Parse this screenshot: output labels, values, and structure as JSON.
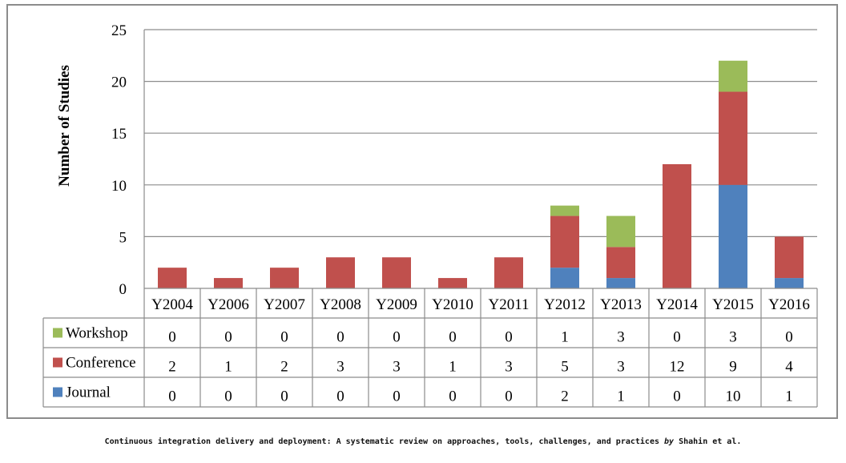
{
  "chart_data": {
    "type": "bar",
    "stacked": true,
    "categories": [
      "Y2004",
      "Y2006",
      "Y2007",
      "Y2008",
      "Y2009",
      "Y2010",
      "Y2011",
      "Y2012",
      "Y2013",
      "Y2014",
      "Y2015",
      "Y2016"
    ],
    "series": [
      {
        "name": "Workshop",
        "color": "#9bbb59",
        "values": [
          0,
          0,
          0,
          0,
          0,
          0,
          0,
          1,
          3,
          0,
          3,
          0
        ]
      },
      {
        "name": "Conference",
        "color": "#c0504d",
        "values": [
          2,
          1,
          2,
          3,
          3,
          1,
          3,
          5,
          3,
          12,
          9,
          4
        ]
      },
      {
        "name": "Journal",
        "color": "#4f81bd",
        "values": [
          0,
          0,
          0,
          0,
          0,
          0,
          0,
          2,
          1,
          0,
          10,
          1
        ]
      }
    ],
    "stack_order": [
      "Journal",
      "Conference",
      "Workshop"
    ],
    "ylabel": "Number of Studies",
    "ylim": [
      0,
      25
    ],
    "yticks": [
      0,
      5,
      10,
      15,
      20,
      25
    ],
    "grid": true,
    "data_table": true
  },
  "caption": {
    "title": "Continuous integration delivery and deployment: A systematic review on approaches, tools, challenges, and practices",
    "by": "by",
    "authors": "Shahin et al."
  }
}
